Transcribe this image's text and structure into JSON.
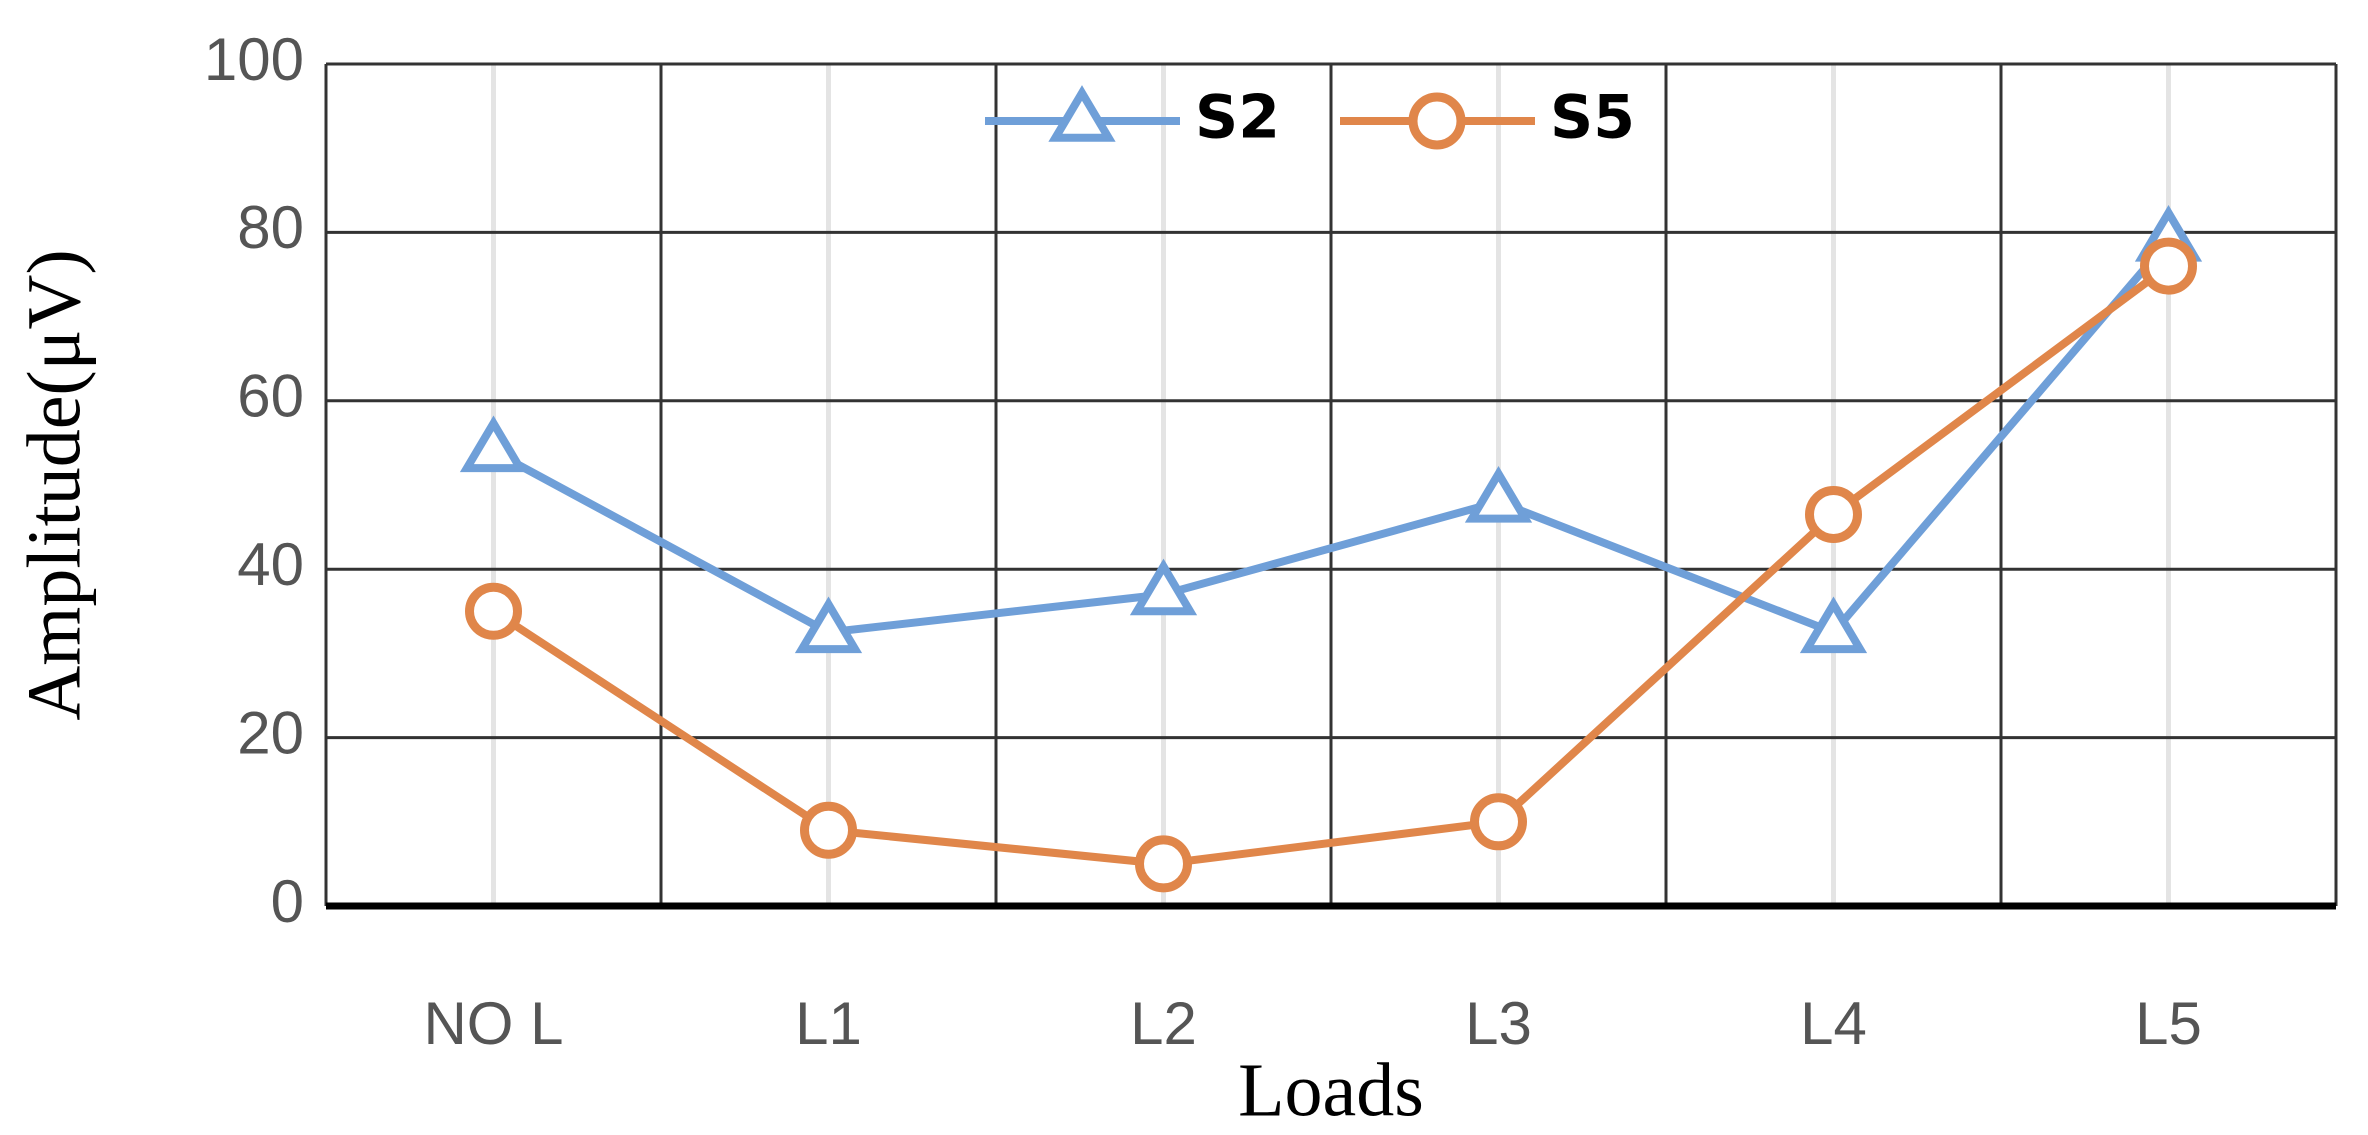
{
  "chart_data": {
    "type": "line",
    "categories": [
      "NO L",
      "L1",
      "L2",
      "L3",
      "L4",
      "L5"
    ],
    "series": [
      {
        "name": "S2",
        "color": "#6f9fd8",
        "marker": "triangle",
        "values": [
          54,
          32.5,
          37,
          48,
          32.5,
          79
        ]
      },
      {
        "name": "S5",
        "color": "#e0864a",
        "marker": "circle",
        "values": [
          35,
          9,
          5,
          10,
          46.5,
          76
        ]
      }
    ],
    "ylim": [
      0,
      100
    ],
    "yticks": [
      0,
      20,
      40,
      60,
      80,
      100
    ],
    "y_label": "Amplitude(μV)",
    "x_label": "Loads",
    "grid": true,
    "legend": "top"
  }
}
